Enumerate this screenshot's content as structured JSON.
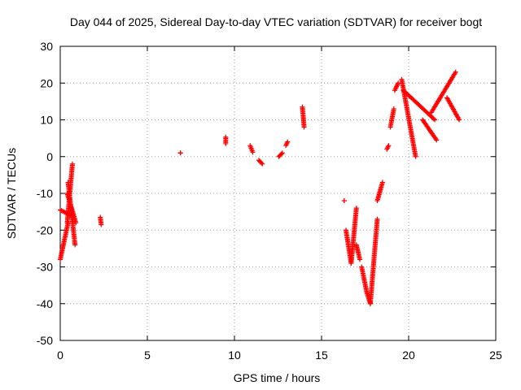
{
  "chart_data": {
    "type": "scatter",
    "title": "Day 044 of 2025, Sidereal Day-to-day VTEC variation (SDTVAR) for receiver bogt",
    "xlabel": "GPS time / hours",
    "ylabel": "SDTVAR / TECUs",
    "xlim": [
      0,
      25
    ],
    "ylim": [
      -50,
      30
    ],
    "xticks": [
      "0",
      "5",
      "10",
      "15",
      "20",
      "25"
    ],
    "yticks": [
      "30",
      "20",
      "10",
      "0",
      "-10",
      "-20",
      "-30",
      "-40",
      "-50"
    ],
    "grid": true,
    "marker": "+",
    "color": "#ff0000",
    "segments": [
      {
        "name": "start-descent",
        "x": [
          0.0,
          0.45
        ],
        "y": [
          -28,
          -18
        ]
      },
      {
        "name": "early-drift",
        "x": [
          0.0,
          0.6
        ],
        "y": [
          -14.5,
          -16
        ]
      },
      {
        "name": "early-rise",
        "x": [
          0.4,
          0.7
        ],
        "y": [
          -18,
          -2
        ]
      },
      {
        "name": "early-spread",
        "x": [
          0.45,
          0.85
        ],
        "y": [
          -7,
          -24
        ]
      },
      {
        "name": "early-cluster",
        "x": [
          0.4,
          0.9
        ],
        "y": [
          -10,
          -18
        ]
      },
      {
        "name": "isolated-2.3",
        "x": [
          2.3,
          2.35
        ],
        "y": [
          -16.5,
          -18.5
        ]
      },
      {
        "name": "isolated-6.9",
        "x": [
          6.9,
          6.9
        ],
        "y": [
          1,
          1
        ]
      },
      {
        "name": "isolated-9.5",
        "x": [
          9.5,
          9.5
        ],
        "y": [
          3.5,
          5.3
        ]
      },
      {
        "name": "cluster-11.0",
        "x": [
          10.9,
          11.05
        ],
        "y": [
          3,
          1.2
        ]
      },
      {
        "name": "cluster-11.5",
        "x": [
          11.4,
          11.6
        ],
        "y": [
          -1,
          -2
        ]
      },
      {
        "name": "cluster-12.6",
        "x": [
          12.55,
          12.75
        ],
        "y": [
          0,
          1
        ]
      },
      {
        "name": "cluster-13.0",
        "x": [
          12.95,
          13.05
        ],
        "y": [
          3,
          4
        ]
      },
      {
        "name": "cluster-13.9",
        "x": [
          13.9,
          14.0
        ],
        "y": [
          13.5,
          8
        ]
      },
      {
        "name": "isolated-16.3",
        "x": [
          16.3,
          16.3
        ],
        "y": [
          -12,
          -12
        ]
      },
      {
        "name": "dip-a",
        "x": [
          16.4,
          16.7
        ],
        "y": [
          -20,
          -29
        ]
      },
      {
        "name": "dip-b",
        "x": [
          16.7,
          17.0
        ],
        "y": [
          -29,
          -14
        ]
      },
      {
        "name": "dip-c",
        "x": [
          17.0,
          17.2
        ],
        "y": [
          -24,
          -28
        ]
      },
      {
        "name": "dip-d",
        "x": [
          17.3,
          17.6
        ],
        "y": [
          -30,
          -37
        ]
      },
      {
        "name": "dip-e",
        "x": [
          17.6,
          17.8
        ],
        "y": [
          -37,
          -40
        ]
      },
      {
        "name": "recovery",
        "x": [
          17.8,
          18.2
        ],
        "y": [
          -40,
          -17
        ]
      },
      {
        "name": "late-cluster-18.3",
        "x": [
          18.2,
          18.5
        ],
        "y": [
          -12,
          -7
        ]
      },
      {
        "name": "late-cluster-18.8",
        "x": [
          18.75,
          18.85
        ],
        "y": [
          2,
          3
        ]
      },
      {
        "name": "late-cluster-19.0",
        "x": [
          18.95,
          19.15
        ],
        "y": [
          8,
          13
        ]
      },
      {
        "name": "peak-19.3",
        "x": [
          19.2,
          19.4
        ],
        "y": [
          18,
          20
        ]
      },
      {
        "name": "descent-20",
        "x": [
          19.6,
          20.4
        ],
        "y": [
          21,
          0
        ]
      },
      {
        "name": "band-main",
        "x": [
          19.7,
          21.5
        ],
        "y": [
          18,
          10
        ]
      },
      {
        "name": "tail-21.6",
        "x": [
          20.8,
          21.6
        ],
        "y": [
          10,
          4.5
        ]
      },
      {
        "name": "rise-22",
        "x": [
          21.3,
          22.7
        ],
        "y": [
          12,
          23
        ]
      },
      {
        "name": "end-band",
        "x": [
          22.2,
          22.9
        ],
        "y": [
          16,
          10
        ]
      }
    ]
  }
}
